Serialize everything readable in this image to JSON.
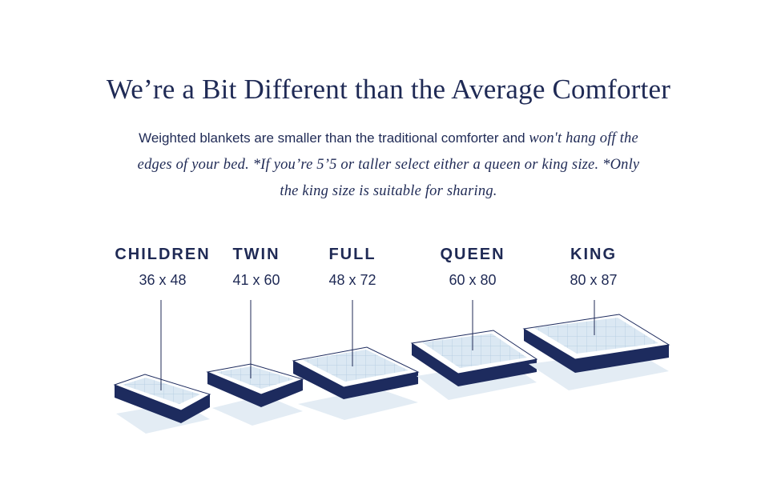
{
  "heading": "We’re a Bit Different than the Average Comforter",
  "intro": {
    "sans_part": "Weighted blankets are smaller than the traditional comforter and ",
    "italic_part": "won't hang off the edges of your bed. *If you’re 5’5 or taller select either a queen or king size. *Only the king size is suitable for sharing."
  },
  "sizes": [
    {
      "name": "CHILDREN",
      "dims": "36 x 48"
    },
    {
      "name": "TWIN",
      "dims": "41 x 60"
    },
    {
      "name": "FULL",
      "dims": "48 x 72"
    },
    {
      "name": "QUEEN",
      "dims": "60 x 80"
    },
    {
      "name": "KING",
      "dims": "80 x 87"
    }
  ],
  "colors": {
    "navy": "#1f2a55",
    "blanket": "#dbe8f3",
    "grid": "#b9cfe3",
    "shadow": "#e3ecf4",
    "mattress_side": "#1d2b5e"
  }
}
